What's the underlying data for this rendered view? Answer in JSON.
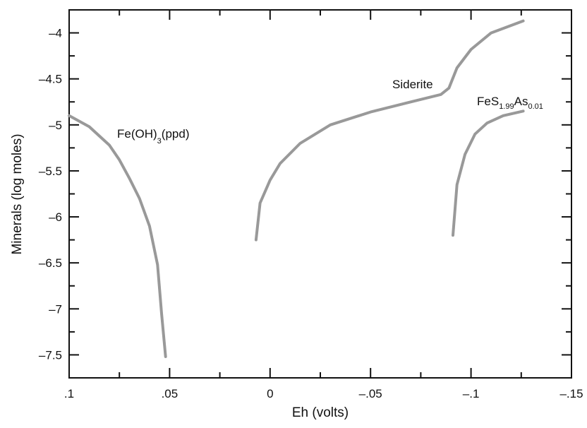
{
  "chart_data": {
    "type": "line",
    "xlabel": "Eh (volts)",
    "ylabel": "Minerals (log moles)",
    "xlim": [
      0.1,
      -0.15
    ],
    "ylim": [
      -7.75,
      -3.75
    ],
    "x_ticks": [
      0.1,
      0.05,
      0,
      -0.05,
      -0.1,
      -0.15
    ],
    "x_tick_labels": [
      ".1",
      ".05",
      "0",
      "–.05",
      "–.1",
      "–.15"
    ],
    "y_ticks": [
      -7.5,
      -7,
      -6.5,
      -6,
      -5.5,
      -5,
      -4.5,
      -4
    ],
    "y_tick_labels": [
      "–7.5",
      "–7",
      "–6.5",
      "–6",
      "–5.5",
      "–5",
      "–4.5",
      "–4"
    ],
    "series": [
      {
        "label_main": "Fe(OH)",
        "label_sub": "3",
        "label_tail": "(ppd)",
        "color": "#999999",
        "x": [
          0.1,
          0.09,
          0.08,
          0.075,
          0.07,
          0.065,
          0.06,
          0.056,
          0.054,
          0.052
        ],
        "y": [
          -4.9,
          -5.02,
          -5.22,
          -5.38,
          -5.58,
          -5.8,
          -6.1,
          -6.52,
          -7.05,
          -7.52
        ]
      },
      {
        "label_main": "Siderite",
        "color": "#999999",
        "x": [
          0.007,
          0.005,
          0.0,
          -0.005,
          -0.015,
          -0.03,
          -0.05,
          -0.07,
          -0.085,
          -0.089,
          -0.093,
          -0.1,
          -0.11,
          -0.126
        ],
        "y": [
          -6.25,
          -5.85,
          -5.6,
          -5.42,
          -5.2,
          -5.0,
          -4.86,
          -4.75,
          -4.67,
          -4.6,
          -4.38,
          -4.18,
          -4.0,
          -3.87
        ]
      },
      {
        "label_main": "FeS",
        "label_sub": "1.99",
        "label_tail": "As",
        "label_sub2": "0.01",
        "color": "#999999",
        "x": [
          -0.091,
          -0.093,
          -0.097,
          -0.102,
          -0.108,
          -0.116,
          -0.126
        ],
        "y": [
          -6.2,
          -5.65,
          -5.32,
          -5.1,
          -4.98,
          -4.9,
          -4.85
        ]
      }
    ]
  }
}
